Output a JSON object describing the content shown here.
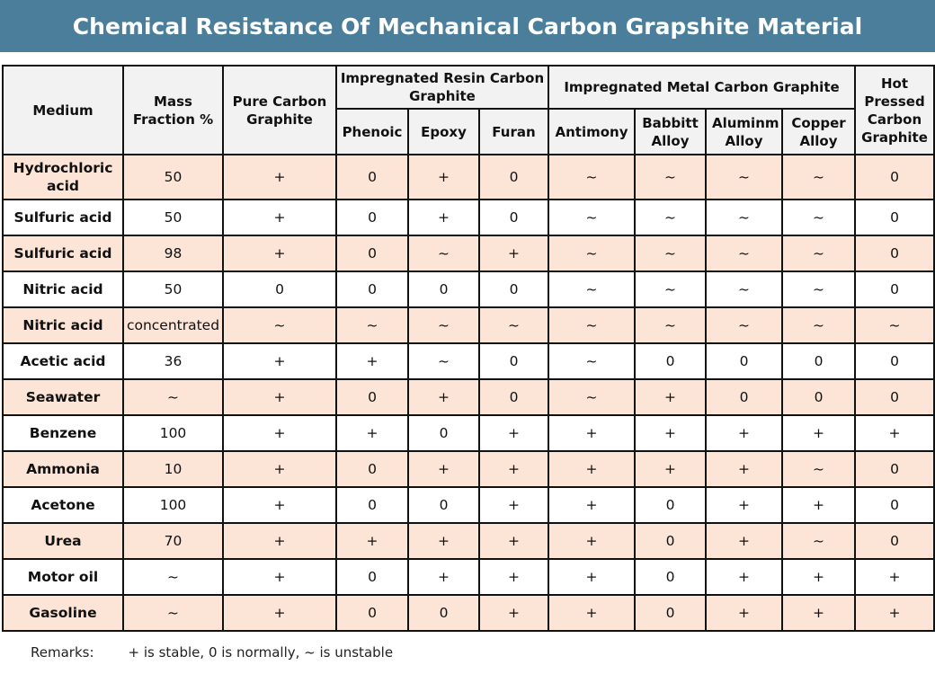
{
  "title": "Chemical Resistance Of Mechanical Carbon Grapshite Material",
  "headers": {
    "medium": "Medium",
    "mass": "Mass Fraction %",
    "pure": "Pure Carbon Graphite",
    "resin": "Impregnated Resin Carbon Graphite",
    "metal": "Impregnated Metal Carbon Graphite",
    "hot": "Hot Pressed Carbon Graphite",
    "phenoic": "Phenoic",
    "epoxy": "Epoxy",
    "furan": "Furan",
    "antimony": "Antimony",
    "babbitt": "Babbitt Alloy",
    "aluminm": "Aluminm Alloy",
    "copper": "Copper Alloy"
  },
  "rows": [
    [
      "Hydrochloric acid",
      "50",
      "+",
      "0",
      "+",
      "0",
      "~",
      "~",
      "~",
      "~",
      "0"
    ],
    [
      "Sulfuric acid",
      "50",
      "+",
      "0",
      "+",
      "0",
      "~",
      "~",
      "~",
      "~",
      "0"
    ],
    [
      "Sulfuric acid",
      "98",
      "+",
      "0",
      "~",
      "+",
      "~",
      "~",
      "~",
      "~",
      "0"
    ],
    [
      "Nitric acid",
      "50",
      "0",
      "0",
      "0",
      "0",
      "~",
      "~",
      "~",
      "~",
      "0"
    ],
    [
      "Nitric acid",
      "concentrated",
      "~",
      "~",
      "~",
      "~",
      "~",
      "~",
      "~",
      "~",
      "~"
    ],
    [
      "Acetic acid",
      "36",
      "+",
      "+",
      "~",
      "0",
      "~",
      "0",
      "0",
      "0",
      "0"
    ],
    [
      "Seawater",
      "~",
      "+",
      "0",
      "+",
      "0",
      "~",
      "+",
      "0",
      "0",
      "0"
    ],
    [
      "Benzene",
      "100",
      "+",
      "+",
      "0",
      "+",
      "+",
      "+",
      "+",
      "+",
      "+"
    ],
    [
      "Ammonia",
      "10",
      "+",
      "0",
      "+",
      "+",
      "+",
      "+",
      "+",
      "~",
      "0"
    ],
    [
      "Acetone",
      "100",
      "+",
      "0",
      "0",
      "+",
      "+",
      "0",
      "+",
      "+",
      "0"
    ],
    [
      "Urea",
      "70",
      "+",
      "+",
      "+",
      "+",
      "+",
      "0",
      "+",
      "~",
      "0"
    ],
    [
      "Motor oil",
      "~",
      "+",
      "0",
      "+",
      "+",
      "+",
      "0",
      "+",
      "+",
      "+"
    ],
    [
      "Gasoline",
      "~",
      "+",
      "0",
      "0",
      "+",
      "+",
      "0",
      "+",
      "+",
      "+"
    ]
  ],
  "remarks": {
    "label": "Remarks:",
    "text": "+ is stable, 0 is normally, ~  is unstable"
  },
  "colors": {
    "title_bg": "#4a7e9b",
    "header_bg": "#f2f2f2",
    "stripe": "#fce4d6"
  }
}
